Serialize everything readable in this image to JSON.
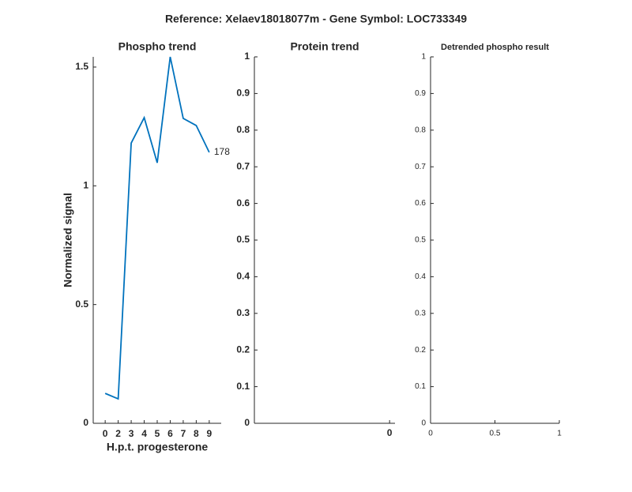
{
  "title": "Reference:  Xelaev18018077m - Gene Symbol:  LOC733349",
  "chart_data": [
    {
      "type": "line",
      "title": "Phospho trend",
      "xlabel": "H.p.t. progesterone",
      "ylabel": "Normalized signal",
      "categories": [
        "0",
        "2",
        "3",
        "4",
        "5",
        "6",
        "7",
        "8",
        "9"
      ],
      "series": [
        {
          "name": "178",
          "color": "#0072bd",
          "values": [
            0.126,
            0.103,
            1.18,
            1.287,
            1.097,
            1.543,
            1.284,
            1.254,
            1.141
          ]
        }
      ],
      "ylim": [
        0,
        1.543
      ],
      "yticks": [
        0,
        0.5,
        1,
        1.5
      ]
    },
    {
      "type": "line",
      "title": "Protein trend",
      "series": [],
      "xlim": [
        -1,
        0.04
      ],
      "xticks": [
        0
      ],
      "ylim": [
        0,
        1
      ],
      "yticks": [
        0,
        0.1,
        0.2,
        0.3,
        0.4,
        0.5,
        0.6,
        0.7,
        0.8,
        0.9,
        1
      ]
    },
    {
      "type": "line",
      "title": "Detrended phospho result",
      "series": [],
      "xlim": [
        0,
        1
      ],
      "xticks": [
        0,
        0.5,
        1
      ],
      "ylim": [
        0,
        1
      ],
      "yticks": [
        0,
        0.1,
        0.2,
        0.3,
        0.4,
        0.5,
        0.6,
        0.7,
        0.8,
        0.9,
        1
      ]
    }
  ]
}
